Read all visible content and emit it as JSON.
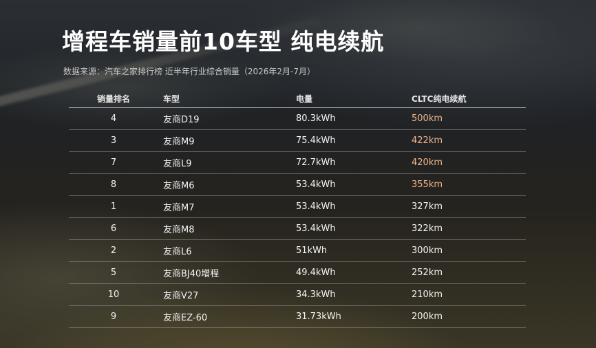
{
  "title": "增程车销量前10车型 纯电续航",
  "subtitle": "数据来源：汽车之家排行榜 近半年行业综合销量（2026年2月-7月）",
  "table": {
    "headers": {
      "rank": "销量排名",
      "model": "车型",
      "capacity": "电量",
      "range": "CLTC纯电续航"
    },
    "rows": [
      {
        "rank": "4",
        "model": "友商D19",
        "capacity": "80.3kWh",
        "range": "500km",
        "highlight": true
      },
      {
        "rank": "3",
        "model": "友商M9",
        "capacity": "75.4kWh",
        "range": "422km",
        "highlight": true
      },
      {
        "rank": "7",
        "model": "友商L9",
        "capacity": "72.7kWh",
        "range": "420km",
        "highlight": true
      },
      {
        "rank": "8",
        "model": "友商M6",
        "capacity": "53.4kWh",
        "range": "355km",
        "highlight": true
      },
      {
        "rank": "1",
        "model": "友商M7",
        "capacity": "53.4kWh",
        "range": "327km",
        "highlight": false
      },
      {
        "rank": "6",
        "model": "友商M8",
        "capacity": "53.4kWh",
        "range": "322km",
        "highlight": false
      },
      {
        "rank": "2",
        "model": "友商L6",
        "capacity": "51kWh",
        "range": "300km",
        "highlight": false
      },
      {
        "rank": "5",
        "model": "友商BJ40增程",
        "capacity": "49.4kWh",
        "range": "252km",
        "highlight": false
      },
      {
        "rank": "10",
        "model": "友商V27",
        "capacity": "34.3kWh",
        "range": "210km",
        "highlight": false
      },
      {
        "rank": "9",
        "model": "友商EZ-60",
        "capacity": "31.73kWh",
        "range": "200km",
        "highlight": false
      }
    ]
  },
  "colors": {
    "highlight_range": "#f0b48a"
  }
}
